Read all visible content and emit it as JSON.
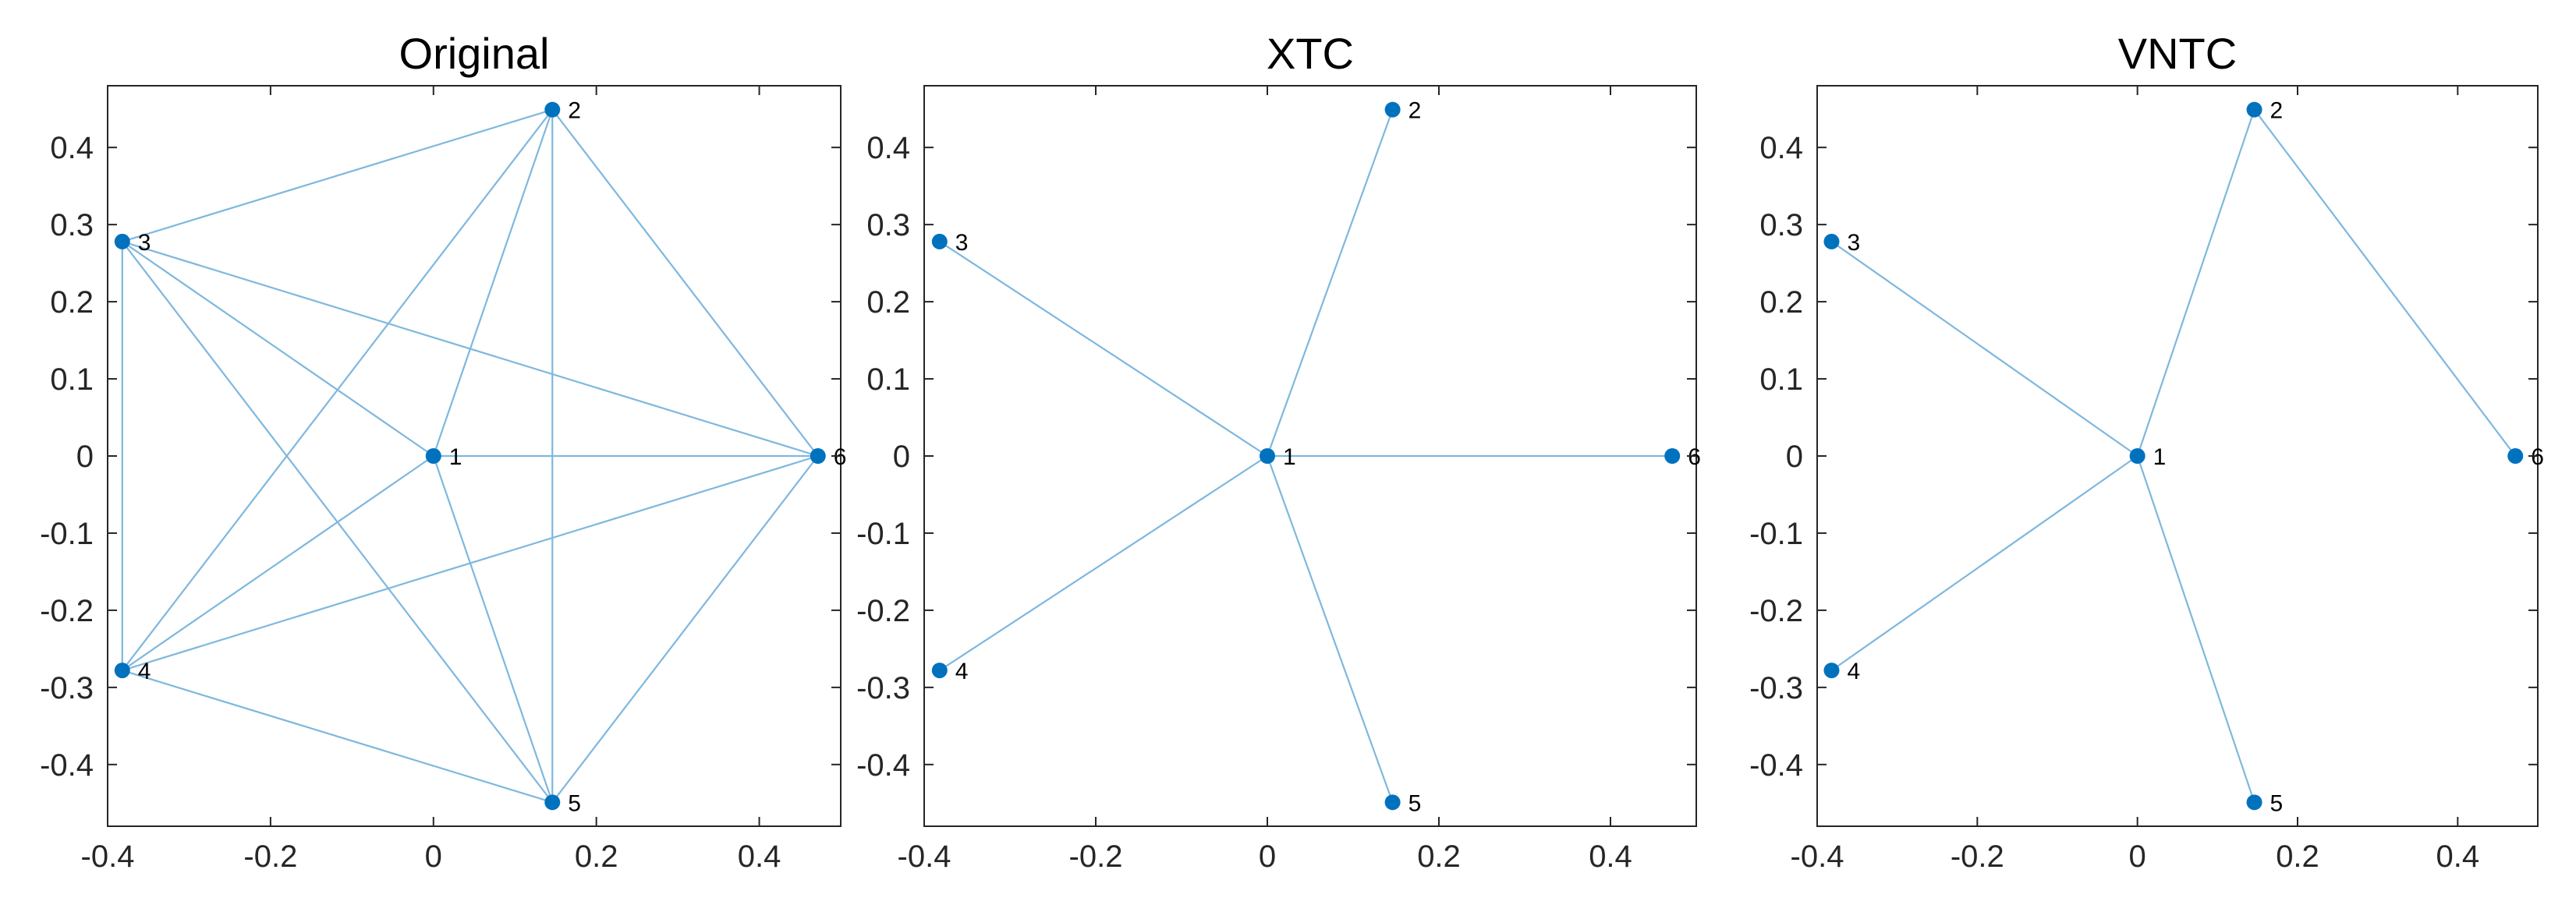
{
  "chart_data": [
    {
      "type": "network",
      "title": "Original",
      "xlim": [
        -0.4,
        0.5
      ],
      "ylim": [
        -0.48,
        0.48
      ],
      "xticks": [
        -0.4,
        -0.2,
        0,
        0.2,
        0.4
      ],
      "xtick_labels": [
        "-0.4",
        "-0.2",
        "0",
        "0.2",
        "0.4"
      ],
      "yticks": [
        0.4,
        0.3,
        0.2,
        0.1,
        0,
        -0.1,
        -0.2,
        -0.3,
        -0.4
      ],
      "ytick_labels": [
        "0.4",
        "0.3",
        "0.2",
        "0.1",
        "0",
        "-0.1",
        "-0.2",
        "-0.3",
        "-0.4"
      ],
      "nodes": [
        {
          "id": "1",
          "x": 0.0,
          "y": 0.0
        },
        {
          "id": "2",
          "x": 0.146,
          "y": 0.449
        },
        {
          "id": "3",
          "x": -0.382,
          "y": 0.278
        },
        {
          "id": "4",
          "x": -0.382,
          "y": -0.278
        },
        {
          "id": "5",
          "x": 0.146,
          "y": -0.449
        },
        {
          "id": "6",
          "x": 0.472,
          "y": 0.0
        }
      ],
      "edges": [
        [
          "1",
          "2"
        ],
        [
          "1",
          "3"
        ],
        [
          "1",
          "4"
        ],
        [
          "1",
          "5"
        ],
        [
          "1",
          "6"
        ],
        [
          "2",
          "3"
        ],
        [
          "2",
          "4"
        ],
        [
          "2",
          "5"
        ],
        [
          "2",
          "6"
        ],
        [
          "3",
          "4"
        ],
        [
          "3",
          "5"
        ],
        [
          "3",
          "6"
        ],
        [
          "4",
          "5"
        ],
        [
          "4",
          "6"
        ],
        [
          "5",
          "6"
        ]
      ]
    },
    {
      "type": "network",
      "title": "XTC",
      "xlim": [
        -0.4,
        0.5
      ],
      "ylim": [
        -0.48,
        0.48
      ],
      "xticks": [
        -0.4,
        -0.2,
        0,
        0.2,
        0.4
      ],
      "xtick_labels": [
        "-0.4",
        "-0.2",
        "0",
        "0.2",
        "0.4"
      ],
      "yticks": [
        0.4,
        0.3,
        0.2,
        0.1,
        0,
        -0.1,
        -0.2,
        -0.3,
        -0.4
      ],
      "ytick_labels": [
        "0.4",
        "0.3",
        "0.2",
        "0.1",
        "0",
        "-0.1",
        "-0.2",
        "-0.3",
        "-0.4"
      ],
      "nodes": [
        {
          "id": "1",
          "x": 0.0,
          "y": 0.0
        },
        {
          "id": "2",
          "x": 0.146,
          "y": 0.449
        },
        {
          "id": "3",
          "x": -0.382,
          "y": 0.278
        },
        {
          "id": "4",
          "x": -0.382,
          "y": -0.278
        },
        {
          "id": "5",
          "x": 0.146,
          "y": -0.449
        },
        {
          "id": "6",
          "x": 0.472,
          "y": 0.0
        }
      ],
      "edges": [
        [
          "1",
          "2"
        ],
        [
          "1",
          "3"
        ],
        [
          "1",
          "4"
        ],
        [
          "1",
          "5"
        ],
        [
          "1",
          "6"
        ]
      ]
    },
    {
      "type": "network",
      "title": "VNTC",
      "xlim": [
        -0.4,
        0.5
      ],
      "ylim": [
        -0.48,
        0.48
      ],
      "xticks": [
        -0.4,
        -0.2,
        0,
        0.2,
        0.4
      ],
      "xtick_labels": [
        "-0.4",
        "-0.2",
        "0",
        "0.2",
        "0.4"
      ],
      "yticks": [
        0.4,
        0.3,
        0.2,
        0.1,
        0,
        -0.1,
        -0.2,
        -0.3,
        -0.4
      ],
      "ytick_labels": [
        "0.4",
        "0.3",
        "0.2",
        "0.1",
        "0",
        "-0.1",
        "-0.2",
        "-0.3",
        "-0.4"
      ],
      "nodes": [
        {
          "id": "1",
          "x": 0.0,
          "y": 0.0
        },
        {
          "id": "2",
          "x": 0.146,
          "y": 0.449
        },
        {
          "id": "3",
          "x": -0.382,
          "y": 0.278
        },
        {
          "id": "4",
          "x": -0.382,
          "y": -0.278
        },
        {
          "id": "5",
          "x": 0.146,
          "y": -0.449
        },
        {
          "id": "6",
          "x": 0.472,
          "y": 0.0
        }
      ],
      "edges": [
        [
          "1",
          "2"
        ],
        [
          "1",
          "3"
        ],
        [
          "1",
          "4"
        ],
        [
          "1",
          "5"
        ],
        [
          "2",
          "6"
        ]
      ]
    }
  ],
  "colors": {
    "node": "#0072BD",
    "edge": "#7FB7DE",
    "axis": "#262626",
    "text": "#000000"
  }
}
